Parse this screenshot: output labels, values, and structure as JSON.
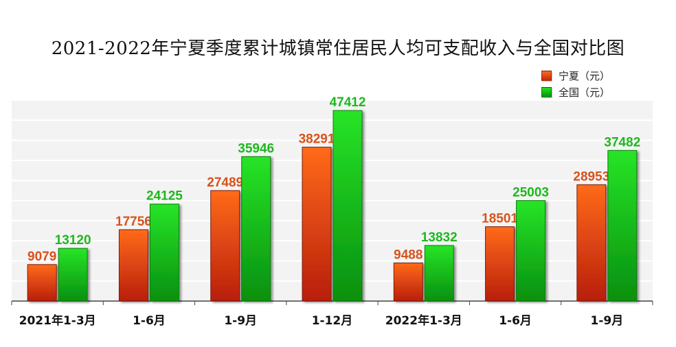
{
  "chart_data": {
    "type": "bar",
    "title": "2021-2022年宁夏季度累计城镇常住居民人均可支配收入与全国对比图",
    "categories": [
      "2021年1-3月",
      "1-6月",
      "1-9月",
      "1-12月",
      "2022年1-3月",
      "1-6月",
      "1-9月"
    ],
    "series": [
      {
        "name": "宁夏（元）",
        "color": "#d9521a",
        "values": [
          9079,
          17756,
          27489,
          38291,
          9488,
          18501,
          28953
        ]
      },
      {
        "name": "全国（元）",
        "color": "#1db81d",
        "values": [
          13120,
          24125,
          35946,
          47412,
          13832,
          25003,
          37482
        ]
      }
    ],
    "ylim": [
      0,
      50000
    ],
    "grid": true,
    "legend_position": "top-right"
  }
}
